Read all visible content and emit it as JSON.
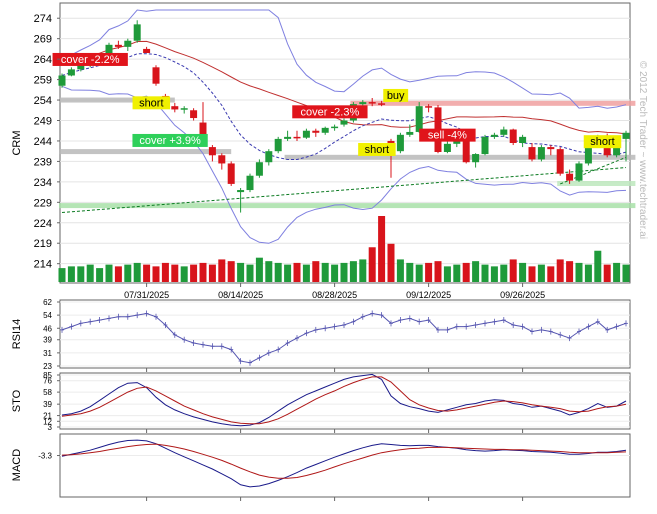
{
  "watermark": "© 2012 Tech Trader ~ www.techtrader.ai",
  "colors": {
    "up": "#1f9a3a",
    "down": "#d8141b",
    "band": "#7f80e0",
    "ma_red": "#c03030",
    "blue_line": "#3a3ab0",
    "rsi_line": "#5555b0",
    "sto_k": "#1a1a8a",
    "sto_d": "#b01818",
    "label_red_bg": "#e0141b",
    "label_green_bg": "#2ed05a",
    "label_yellow_bg": "#f0f000"
  },
  "chart_data": [
    {
      "type": "candlestick",
      "ylabel": "CRM",
      "y_ticks": [
        274,
        269,
        264,
        259,
        254,
        249,
        244,
        239,
        234,
        229,
        224,
        219,
        214
      ],
      "ylim": [
        210.5,
        276.5
      ],
      "x_tick_labels": [
        "07/31/2025",
        "08/14/2025",
        "08/28/2025",
        "09/12/2025",
        "09/26/2025"
      ],
      "x_tick_index": [
        9,
        19,
        29,
        39,
        49
      ],
      "bars": 61,
      "ohlc": [
        [
          257.5,
          260.5,
          257,
          260
        ],
        [
          260,
          262,
          259.8,
          261.5
        ],
        [
          261.5,
          263,
          261,
          262.5
        ],
        [
          262.5,
          263.8,
          262,
          263.5
        ],
        [
          263.5,
          265,
          263,
          264.8
        ],
        [
          264.8,
          268,
          264.5,
          267.5
        ],
        [
          267.5,
          268.5,
          266.5,
          267
        ],
        [
          267,
          269,
          266,
          268.5
        ],
        [
          268.5,
          273.5,
          268,
          272.5
        ],
        [
          266.5,
          267,
          265.5,
          265.5
        ],
        [
          262,
          262.5,
          257.5,
          258
        ],
        [
          255,
          255.5,
          253,
          254
        ],
        [
          252.5,
          253.3,
          251,
          251.7
        ],
        [
          251.7,
          252.5,
          250.7,
          252
        ],
        [
          251.5,
          252,
          249,
          249.6
        ],
        [
          248.5,
          253.5,
          244.5,
          244.8
        ],
        [
          242.5,
          243,
          239,
          240.5
        ],
        [
          240.5,
          241,
          237,
          238.5
        ],
        [
          238.5,
          239,
          233,
          233.5
        ],
        [
          231.5,
          232.5,
          226.5,
          232
        ],
        [
          232,
          236,
          231.5,
          235.5
        ],
        [
          235.5,
          239.5,
          235,
          238.8
        ],
        [
          238.8,
          242,
          238,
          241.5
        ],
        [
          241.5,
          245,
          241,
          244.5
        ],
        [
          244.5,
          246.5,
          244,
          245
        ],
        [
          245,
          246.5,
          244,
          244.8
        ],
        [
          244.8,
          247,
          244.5,
          246.5
        ],
        [
          246.5,
          247,
          245,
          246
        ],
        [
          246,
          247.5,
          245.5,
          247.2
        ],
        [
          247.2,
          248,
          246.5,
          247.5
        ],
        [
          248,
          249.5,
          247.5,
          249
        ],
        [
          249,
          253.5,
          248.5,
          253
        ],
        [
          253,
          254,
          252,
          253.5
        ],
        [
          253.5,
          254.5,
          252.5,
          253.2
        ],
        [
          253.2,
          253.8,
          252.5,
          253
        ],
        [
          244,
          244.5,
          235,
          241.5
        ],
        [
          241.5,
          246,
          241,
          245.5
        ],
        [
          245.5,
          248,
          245,
          246.2
        ],
        [
          246.2,
          253.5,
          246,
          252.5
        ],
        [
          252.5,
          253,
          251,
          252.2
        ],
        [
          252.2,
          252.8,
          241,
          241.3
        ],
        [
          241.3,
          244,
          241,
          243.3
        ],
        [
          243.3,
          245.5,
          242.5,
          245.2
        ],
        [
          245.2,
          246.5,
          238.5,
          238.8
        ],
        [
          238.8,
          241,
          237.5,
          240.8
        ],
        [
          240.8,
          245.5,
          240.5,
          245
        ],
        [
          245,
          246,
          244.5,
          245.5
        ],
        [
          245.5,
          247.5,
          245,
          246.8
        ],
        [
          246.8,
          247,
          243,
          243.5
        ],
        [
          243.5,
          245.5,
          242.5,
          245
        ],
        [
          242.5,
          243.5,
          239,
          239.5
        ],
        [
          239.5,
          243,
          239,
          242.5
        ],
        [
          242.5,
          243,
          240.5,
          242
        ],
        [
          242,
          242.5,
          235.5,
          236
        ],
        [
          236,
          237,
          233.5,
          234.3
        ],
        [
          234.3,
          239,
          234,
          238.5
        ],
        [
          238.5,
          243.5,
          238,
          243.5
        ],
        [
          243.5,
          245.5,
          243,
          245
        ],
        [
          245,
          245.8,
          240,
          240.5
        ],
        [
          240.5,
          245,
          240,
          244.5
        ],
        [
          244.5,
          246.5,
          239,
          246
        ]
      ],
      "volume": [
        8,
        9,
        9,
        10,
        8,
        10,
        9,
        10,
        11,
        10,
        9,
        11,
        10,
        9,
        10,
        11,
        10,
        13,
        12,
        11,
        10,
        14,
        12,
        11,
        10,
        11,
        10,
        12,
        11,
        10,
        11,
        12,
        13,
        20,
        38,
        22,
        13,
        11,
        10,
        11,
        12,
        9,
        10,
        11,
        12,
        10,
        9,
        10,
        13,
        11,
        9,
        10,
        9,
        13,
        12,
        11,
        10,
        18,
        10,
        11,
        10
      ],
      "horizontal_levels": [
        {
          "y": 254.0,
          "x0": 0,
          "x1": 12,
          "color": "#b8b8b8"
        },
        {
          "y": 253.2,
          "x0": 31,
          "x1": 61,
          "color": "#f0a0a0"
        },
        {
          "y": 241.4,
          "x0": 0,
          "x1": 18,
          "color": "#b8b8b8"
        },
        {
          "y": 240.0,
          "x0": 24,
          "x1": 61,
          "color": "#b8b8b8"
        },
        {
          "y": 233.6,
          "x0": 53,
          "x1": 61,
          "color": "#bde8bd"
        },
        {
          "y": 228.2,
          "x0": 0,
          "x1": 61,
          "color": "#a8e0a8"
        }
      ],
      "annotations": [
        {
          "text": "cover -2.2%",
          "style": "red",
          "bar": 3,
          "y": 263.8
        },
        {
          "text": "short",
          "style": "yellow",
          "bar": 9.5,
          "y": 253.2
        },
        {
          "text": "cover +3.9%",
          "style": "green",
          "bar": 11.5,
          "y": 244.0
        },
        {
          "text": "cover -2.3%",
          "style": "red",
          "bar": 28.5,
          "y": 251.0
        },
        {
          "text": "buy",
          "style": "yellow",
          "bar": 35.5,
          "y": 255.0
        },
        {
          "text": "short",
          "style": "yellow",
          "bar": 33.5,
          "y": 241.8
        },
        {
          "text": "sell -4%",
          "style": "red",
          "bar": 41,
          "y": 245.3
        },
        {
          "text": "short",
          "style": "yellow",
          "bar": 57.5,
          "y": 243.7
        }
      ]
    },
    {
      "type": "line",
      "ylabel": "RSI14",
      "y_ticks": [
        62,
        54,
        46,
        39,
        31,
        23
      ],
      "ylim": [
        23,
        62
      ],
      "values": [
        45,
        47,
        49,
        50,
        51,
        52,
        53,
        53,
        54,
        55,
        53,
        48,
        42,
        39,
        37,
        36,
        35,
        35,
        33,
        26,
        25,
        28,
        31,
        33,
        37,
        40,
        43,
        45,
        46,
        47,
        48,
        50,
        53,
        55,
        54,
        49,
        51,
        52,
        50,
        51,
        45,
        45,
        47,
        47,
        48,
        49,
        50,
        51,
        48,
        47,
        44,
        45,
        44,
        42,
        40,
        44,
        47,
        50,
        45,
        47,
        49
      ]
    },
    {
      "type": "line",
      "ylabel": "STO",
      "y_ticks": [
        85,
        76,
        58,
        39,
        21,
        12,
        3
      ],
      "ylim": [
        3,
        85
      ],
      "series": [
        {
          "values": [
            22,
            24,
            28,
            35,
            45,
            55,
            65,
            72,
            73,
            65,
            50,
            38,
            30,
            24,
            19,
            15,
            11,
            8,
            6,
            5,
            6,
            10,
            18,
            28,
            38,
            46,
            54,
            60,
            66,
            72,
            78,
            82,
            84,
            86,
            78,
            52,
            40,
            35,
            32,
            28,
            26,
            30,
            34,
            38,
            40,
            44,
            46,
            45,
            40,
            38,
            34,
            36,
            32,
            28,
            22,
            26,
            32,
            40,
            34,
            36,
            44
          ]
        },
        {
          "values": [
            20,
            22,
            24,
            28,
            34,
            42,
            50,
            58,
            64,
            66,
            60,
            52,
            44,
            36,
            30,
            24,
            19,
            15,
            11,
            9,
            8,
            8,
            11,
            16,
            23,
            31,
            39,
            47,
            54,
            60,
            67,
            73,
            78,
            82,
            82,
            74,
            60,
            46,
            38,
            33,
            29,
            28,
            30,
            33,
            36,
            39,
            42,
            44,
            43,
            41,
            38,
            36,
            34,
            32,
            28,
            27,
            28,
            32,
            35,
            36,
            39
          ]
        }
      ]
    },
    {
      "type": "line",
      "ylabel": "MACD",
      "y_ticks": [
        -3.3
      ],
      "ylim": [
        -13,
        1.5
      ],
      "series": [
        {
          "values": [
            -3.5,
            -3.0,
            -2.5,
            -2.0,
            -1.3,
            -0.6,
            0.0,
            0.4,
            0.5,
            0.3,
            -0.4,
            -1.5,
            -2.6,
            -3.6,
            -4.6,
            -5.6,
            -6.6,
            -7.8,
            -9.0,
            -10.5,
            -11.0,
            -10.8,
            -10.2,
            -9.4,
            -8.5,
            -7.5,
            -6.4,
            -5.5,
            -4.6,
            -3.7,
            -2.9,
            -2.1,
            -1.4,
            -0.8,
            -0.4,
            -0.6,
            -0.8,
            -0.9,
            -0.8,
            -0.8,
            -1.1,
            -1.3,
            -1.5,
            -1.9,
            -2.1,
            -2.2,
            -2.1,
            -1.9,
            -2.0,
            -2.1,
            -2.3,
            -2.4,
            -2.5,
            -2.7,
            -3.0,
            -3.0,
            -2.8,
            -2.5,
            -2.5,
            -2.3,
            -2.0
          ]
        },
        {
          "values": [
            -3.2,
            -3.1,
            -2.9,
            -2.6,
            -2.3,
            -1.9,
            -1.5,
            -1.1,
            -0.8,
            -0.6,
            -0.5,
            -0.8,
            -1.2,
            -1.7,
            -2.3,
            -3.0,
            -3.7,
            -4.5,
            -5.4,
            -6.4,
            -7.3,
            -8.1,
            -8.6,
            -8.9,
            -8.9,
            -8.7,
            -8.2,
            -7.6,
            -6.9,
            -6.1,
            -5.3,
            -4.6,
            -3.9,
            -3.2,
            -2.6,
            -2.2,
            -1.9,
            -1.6,
            -1.5,
            -1.3,
            -1.3,
            -1.3,
            -1.4,
            -1.5,
            -1.6,
            -1.7,
            -1.8,
            -1.8,
            -1.9,
            -1.9,
            -2.0,
            -2.1,
            -2.2,
            -2.3,
            -2.5,
            -2.6,
            -2.6,
            -2.6,
            -2.6,
            -2.5,
            -2.4
          ]
        }
      ]
    }
  ]
}
